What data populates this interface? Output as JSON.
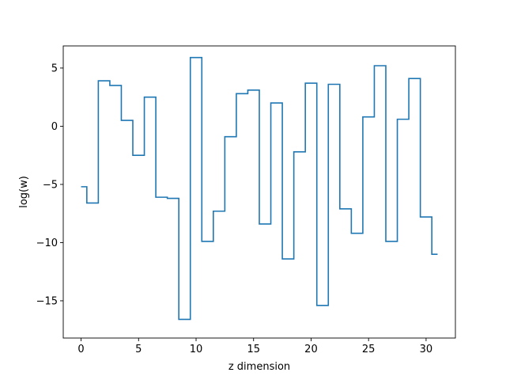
{
  "chart_data": {
    "type": "line",
    "style": "step-mid",
    "title": "",
    "xlabel": "z dimension",
    "ylabel": "log(w)",
    "xlim": [
      -1.55,
      32.55
    ],
    "ylim": [
      -18.2,
      6.9
    ],
    "xticks": [
      0,
      5,
      10,
      15,
      20,
      25,
      30
    ],
    "yticks": [
      -15,
      -10,
      -5,
      0,
      5
    ],
    "xtick_labels": [
      "0",
      "5",
      "10",
      "15",
      "20",
      "25",
      "30"
    ],
    "ytick_labels": [
      "−15",
      "−10",
      "−5",
      "0",
      "5"
    ],
    "grid": false,
    "legend": "none",
    "line_color": "#1f77b4",
    "series": [
      {
        "x": [
          0,
          1,
          2,
          3,
          4,
          5,
          6,
          7,
          8,
          9,
          10,
          11,
          12,
          13,
          14,
          15,
          16,
          17,
          18,
          19,
          20,
          21,
          22,
          23,
          24,
          25,
          26,
          27,
          28,
          29,
          30,
          31
        ],
        "values": [
          -5.2,
          -6.6,
          3.9,
          3.5,
          0.5,
          -2.5,
          2.5,
          -6.1,
          -6.2,
          -16.6,
          5.9,
          -9.9,
          -7.3,
          -0.9,
          2.8,
          3.1,
          -8.4,
          2.0,
          -11.4,
          -2.2,
          3.7,
          -15.4,
          3.6,
          -7.1,
          -9.2,
          0.8,
          5.2,
          -9.9,
          0.6,
          4.1,
          -7.8,
          -11.0
        ]
      }
    ]
  }
}
